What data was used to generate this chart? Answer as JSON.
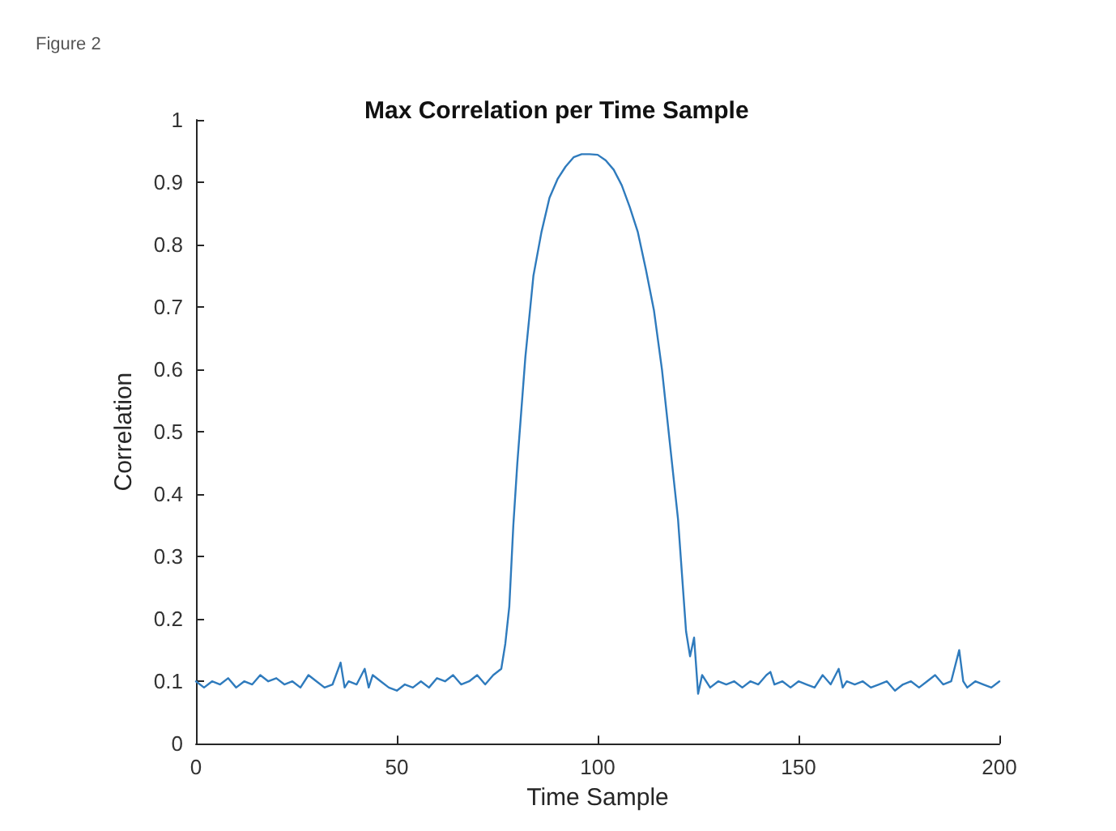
{
  "chart_data": {
    "type": "line",
    "title": "Max Correlation per Time Sample",
    "xlabel": "Time Sample",
    "ylabel": "Correlation",
    "annotations": [
      "Figure 2"
    ],
    "x": [
      0,
      2,
      4,
      6,
      8,
      10,
      12,
      14,
      16,
      18,
      20,
      22,
      24,
      26,
      28,
      30,
      32,
      34,
      36,
      37,
      38,
      40,
      42,
      43,
      44,
      46,
      48,
      50,
      52,
      54,
      56,
      58,
      60,
      62,
      64,
      66,
      68,
      70,
      72,
      74,
      76,
      77,
      78,
      79,
      80,
      82,
      84,
      86,
      88,
      90,
      92,
      94,
      96,
      98,
      100,
      102,
      104,
      106,
      108,
      110,
      112,
      114,
      116,
      118,
      120,
      122,
      123,
      124,
      125,
      126,
      128,
      130,
      132,
      134,
      136,
      138,
      140,
      142,
      143,
      144,
      146,
      148,
      150,
      152,
      154,
      156,
      158,
      160,
      161,
      162,
      164,
      166,
      168,
      170,
      172,
      174,
      176,
      178,
      180,
      182,
      184,
      186,
      188,
      190,
      191,
      192,
      194,
      196,
      198,
      200
    ],
    "series": [
      {
        "color": "#2f7bbd",
        "values": [
          0.1,
          0.09,
          0.1,
          0.095,
          0.105,
          0.09,
          0.1,
          0.095,
          0.11,
          0.1,
          0.105,
          0.095,
          0.1,
          0.09,
          0.11,
          0.1,
          0.09,
          0.095,
          0.13,
          0.09,
          0.1,
          0.095,
          0.12,
          0.09,
          0.11,
          0.1,
          0.09,
          0.085,
          0.095,
          0.09,
          0.1,
          0.09,
          0.105,
          0.1,
          0.11,
          0.095,
          0.1,
          0.11,
          0.095,
          0.11,
          0.12,
          0.16,
          0.22,
          0.35,
          0.45,
          0.62,
          0.75,
          0.82,
          0.875,
          0.905,
          0.925,
          0.94,
          0.945,
          0.945,
          0.944,
          0.935,
          0.92,
          0.895,
          0.86,
          0.82,
          0.76,
          0.695,
          0.6,
          0.48,
          0.36,
          0.18,
          0.14,
          0.17,
          0.08,
          0.11,
          0.09,
          0.1,
          0.095,
          0.1,
          0.09,
          0.1,
          0.095,
          0.11,
          0.115,
          0.095,
          0.1,
          0.09,
          0.1,
          0.095,
          0.09,
          0.11,
          0.095,
          0.12,
          0.09,
          0.1,
          0.095,
          0.1,
          0.09,
          0.095,
          0.1,
          0.085,
          0.095,
          0.1,
          0.09,
          0.1,
          0.11,
          0.095,
          0.1,
          0.15,
          0.1,
          0.09,
          0.1,
          0.095,
          0.09,
          0.1
        ]
      }
    ],
    "xlim": [
      0,
      200
    ],
    "xticks": [
      0,
      50,
      100,
      150,
      200
    ],
    "ylim": [
      0,
      1
    ],
    "yticks": [
      0,
      0.1,
      0.2,
      0.3,
      0.4,
      0.5,
      0.6,
      0.7,
      0.8,
      0.9,
      1
    ],
    "grid": false,
    "marker": "none",
    "line_style": "solid"
  }
}
